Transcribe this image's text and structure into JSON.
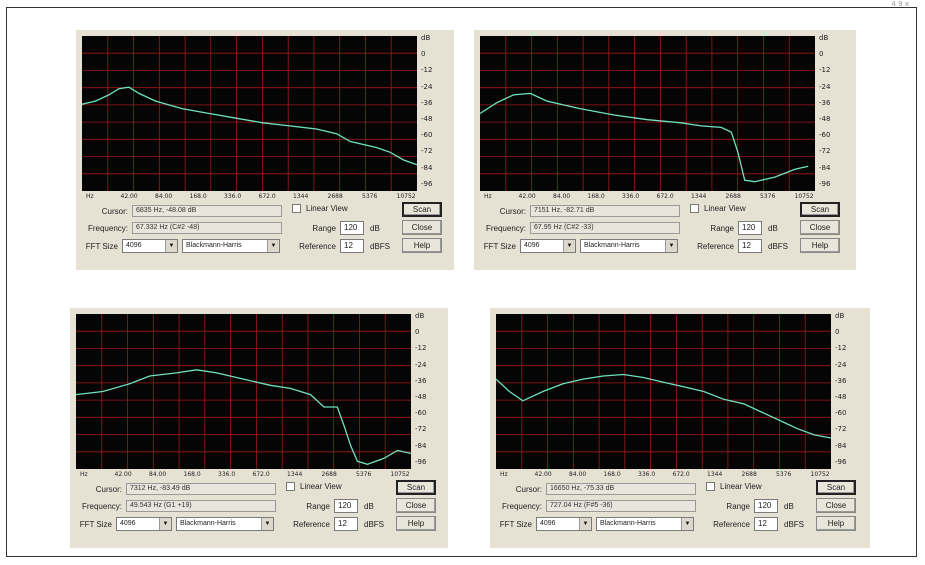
{
  "corner_mark": "4 9 x",
  "db_scale": [
    "dB",
    "0",
    "-12",
    "-24",
    "-36",
    "-48",
    "-60",
    "-72",
    "-84",
    "-96"
  ],
  "freq_axis": [
    "Hz",
    "42.00",
    "84.00",
    "168.0",
    "336.0",
    "672.0",
    "1344",
    "2688",
    "5376",
    "10752"
  ],
  "panels": [
    {
      "cursor_label": "Cursor:",
      "cursor_value": "6835 Hz, -48.08 dB",
      "frequency_label": "Frequency:",
      "frequency_value": "67.332 Hz (C#2 -48)",
      "fft_label": "FFT Size",
      "fft_size": "4096",
      "window": "Blackmann-Harris",
      "linear_view_label": "Linear View",
      "range_label": "Range",
      "range_value": "120",
      "range_unit": "dB",
      "reference_label": "Reference",
      "reference_value": "12",
      "reference_unit": "dBFS",
      "scan_label": "Scan",
      "close_label": "Close",
      "help_label": "Help",
      "curve": [
        [
          0,
          0.44
        ],
        [
          0.04,
          0.42
        ],
        [
          0.08,
          0.38
        ],
        [
          0.11,
          0.34
        ],
        [
          0.14,
          0.33
        ],
        [
          0.17,
          0.37
        ],
        [
          0.22,
          0.42
        ],
        [
          0.3,
          0.47
        ],
        [
          0.38,
          0.5
        ],
        [
          0.46,
          0.53
        ],
        [
          0.54,
          0.56
        ],
        [
          0.62,
          0.58
        ],
        [
          0.7,
          0.6
        ],
        [
          0.76,
          0.63
        ],
        [
          0.8,
          0.68
        ],
        [
          0.84,
          0.7
        ],
        [
          0.88,
          0.72
        ],
        [
          0.92,
          0.75
        ],
        [
          0.96,
          0.8
        ],
        [
          1,
          0.83
        ]
      ]
    },
    {
      "cursor_label": "Cursor:",
      "cursor_value": "7151 Hz, -82.71 dB",
      "frequency_label": "Frequency:",
      "frequency_value": "67.95 Hz (C#2 -33)",
      "fft_label": "FFT Size",
      "fft_size": "4096",
      "window": "Blackmann-Harris",
      "linear_view_label": "Linear View",
      "range_label": "Range",
      "range_value": "120",
      "range_unit": "dB",
      "reference_label": "Reference",
      "reference_value": "12",
      "reference_unit": "dBFS",
      "scan_label": "Scan",
      "close_label": "Close",
      "help_label": "Help",
      "curve": [
        [
          0,
          0.5
        ],
        [
          0.05,
          0.43
        ],
        [
          0.1,
          0.38
        ],
        [
          0.15,
          0.37
        ],
        [
          0.2,
          0.42
        ],
        [
          0.3,
          0.47
        ],
        [
          0.4,
          0.51
        ],
        [
          0.5,
          0.54
        ],
        [
          0.6,
          0.56
        ],
        [
          0.66,
          0.58
        ],
        [
          0.72,
          0.59
        ],
        [
          0.75,
          0.62
        ],
        [
          0.77,
          0.75
        ],
        [
          0.79,
          0.93
        ],
        [
          0.82,
          0.94
        ],
        [
          0.88,
          0.91
        ],
        [
          0.94,
          0.86
        ],
        [
          0.98,
          0.84
        ]
      ]
    },
    {
      "cursor_label": "Cursor:",
      "cursor_value": "7312 Hz, -83.49 dB",
      "frequency_label": "Frequency:",
      "frequency_value": "49.543 Hz (G1 +19)",
      "fft_label": "FFT Size",
      "fft_size": "4096",
      "window": "Blackmann-Harris",
      "linear_view_label": "Linear View",
      "range_label": "Range",
      "range_value": "120",
      "range_unit": "dB",
      "reference_label": "Reference",
      "reference_value": "12",
      "reference_unit": "dBFS",
      "scan_label": "Scan",
      "close_label": "Close",
      "help_label": "Help",
      "curve": [
        [
          0,
          0.52
        ],
        [
          0.08,
          0.5
        ],
        [
          0.16,
          0.45
        ],
        [
          0.22,
          0.4
        ],
        [
          0.3,
          0.38
        ],
        [
          0.36,
          0.36
        ],
        [
          0.42,
          0.38
        ],
        [
          0.5,
          0.42
        ],
        [
          0.58,
          0.46
        ],
        [
          0.64,
          0.48
        ],
        [
          0.7,
          0.52
        ],
        [
          0.74,
          0.6
        ],
        [
          0.78,
          0.6
        ],
        [
          0.8,
          0.72
        ],
        [
          0.82,
          0.85
        ],
        [
          0.84,
          0.95
        ],
        [
          0.87,
          0.97
        ],
        [
          0.92,
          0.93
        ],
        [
          0.96,
          0.88
        ],
        [
          1,
          0.9
        ]
      ]
    },
    {
      "cursor_label": "Cursor:",
      "cursor_value": "16650 Hz, -75.33 dB",
      "frequency_label": "Frequency:",
      "frequency_value": "727.04 Hz (F#5 -36)",
      "fft_label": "FFT Size",
      "fft_size": "4096",
      "window": "Blackmann-Harris",
      "linear_view_label": "Linear View",
      "range_label": "Range",
      "range_value": "120",
      "range_unit": "dB",
      "reference_label": "Reference",
      "reference_value": "12",
      "reference_unit": "dBFS",
      "scan_label": "Scan",
      "close_label": "Close",
      "help_label": "Help",
      "curve": [
        [
          0,
          0.42
        ],
        [
          0.04,
          0.5
        ],
        [
          0.08,
          0.56
        ],
        [
          0.14,
          0.5
        ],
        [
          0.2,
          0.45
        ],
        [
          0.26,
          0.42
        ],
        [
          0.32,
          0.4
        ],
        [
          0.38,
          0.39
        ],
        [
          0.44,
          0.41
        ],
        [
          0.5,
          0.44
        ],
        [
          0.56,
          0.47
        ],
        [
          0.62,
          0.5
        ],
        [
          0.68,
          0.55
        ],
        [
          0.74,
          0.58
        ],
        [
          0.8,
          0.64
        ],
        [
          0.86,
          0.7
        ],
        [
          0.9,
          0.74
        ],
        [
          0.95,
          0.78
        ],
        [
          1,
          0.8
        ]
      ]
    }
  ]
}
